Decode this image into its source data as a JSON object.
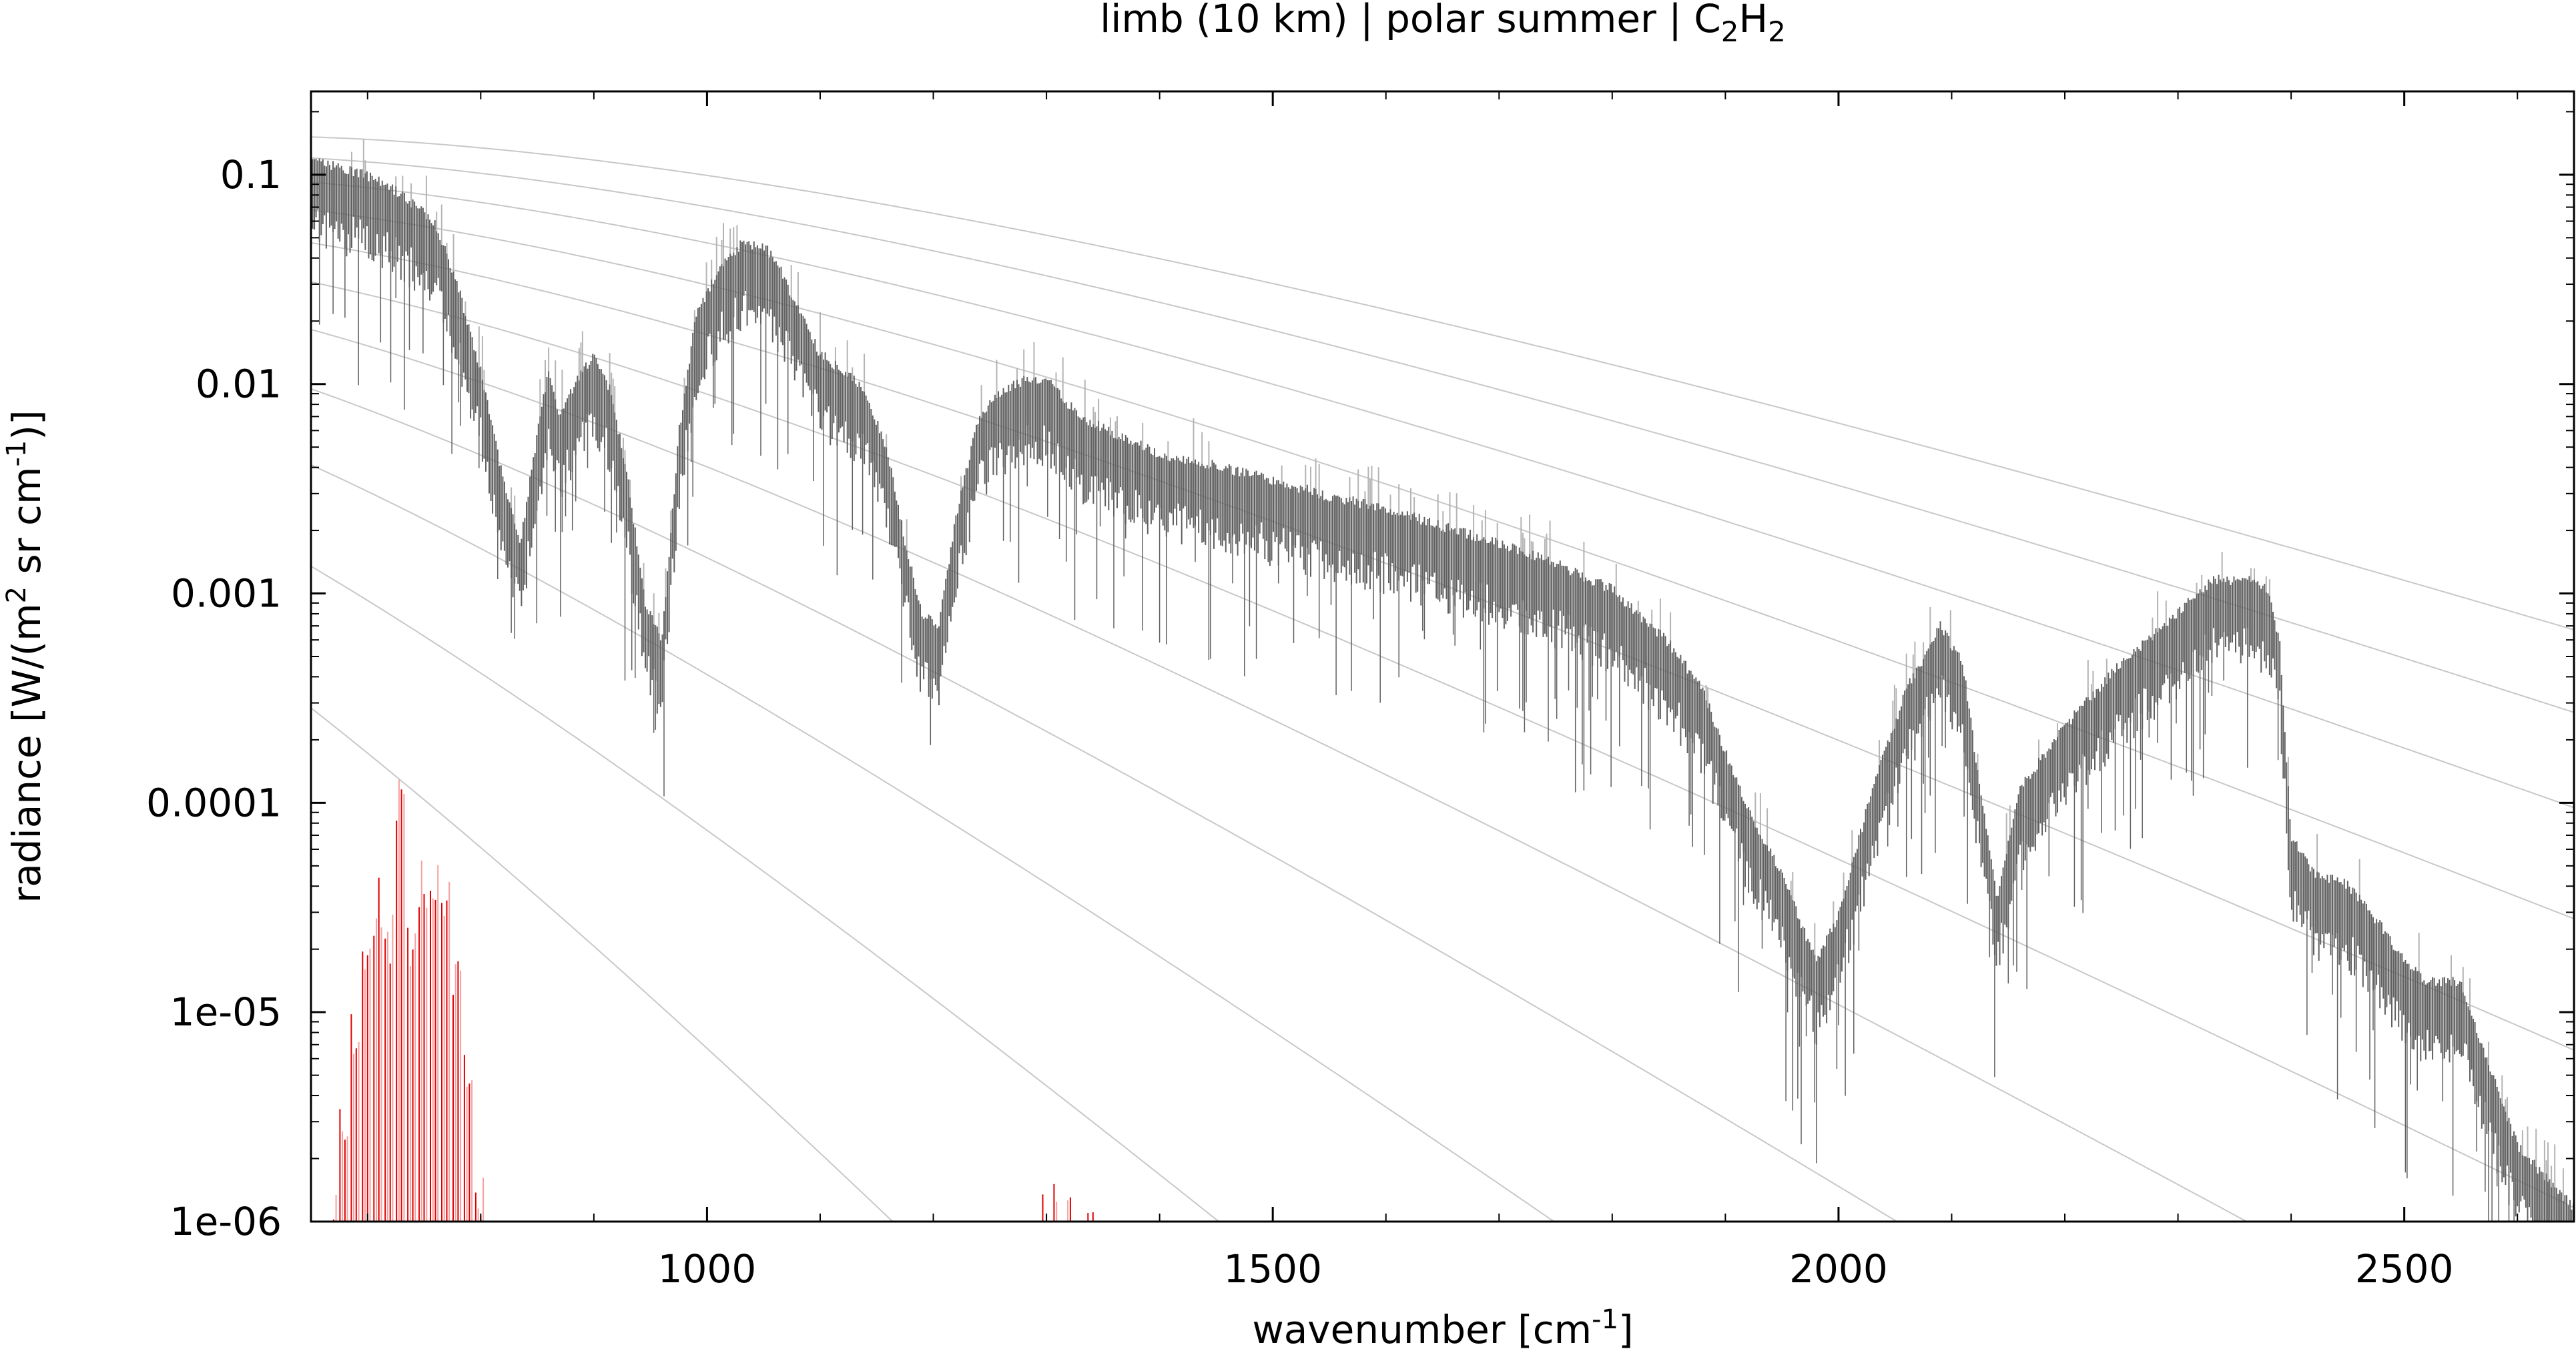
{
  "chart_data": {
    "type": "line",
    "title": {
      "prefix": "limb (10 km) | polar summer | C",
      "sub1": "2",
      "mid": "H",
      "sub2": "2"
    },
    "xlabel": {
      "prefix": "wavenumber [cm",
      "sup": "-1",
      "suffix": "]"
    },
    "ylabel": {
      "p1": "radiance [W/(m",
      "sup1": "2",
      "p2": " sr cm",
      "sup2": "-1",
      "p3": ")]"
    },
    "xlim": [
      650,
      2650
    ],
    "ylim": [
      1e-06,
      0.25
    ],
    "yscale": "log",
    "grid": false,
    "x_ticks": [
      1000,
      1500,
      2000,
      2500
    ],
    "x_tick_labels": [
      "1000",
      "1500",
      "2000",
      "2500"
    ],
    "y_ticks": [
      0.1,
      0.01,
      0.001,
      0.0001,
      1e-05,
      1e-06
    ],
    "y_tick_labels": [
      "0.1",
      "0.01",
      "0.001",
      "0.0001",
      "1e-05",
      "1e-06"
    ],
    "colors": {
      "total": "#606060",
      "total_light": "#b4b4b4",
      "species": "#e00000",
      "species_light": "#f4a0a0",
      "planck": "#c8c8c8"
    },
    "planck_temperatures_K": [
      300,
      280,
      260,
      240,
      220,
      200,
      180,
      160,
      140,
      120,
      100
    ],
    "series": [
      {
        "role": "total",
        "x": [
          650,
          670,
          700,
          730,
          760,
          780,
          800,
          820,
          835,
          850,
          860,
          870,
          885,
          900,
          915,
          930,
          945,
          960,
          975,
          990,
          1010,
          1030,
          1050,
          1065,
          1080,
          1100,
          1120,
          1140,
          1160,
          1175,
          1190,
          1205,
          1220,
          1240,
          1260,
          1280,
          1300,
          1330,
          1360,
          1400,
          1450,
          1500,
          1550,
          1600,
          1650,
          1700,
          1750,
          1800,
          1850,
          1880,
          1900,
          1920,
          1950,
          1980,
          2000,
          2030,
          2060,
          2090,
          2110,
          2125,
          2140,
          2160,
          2200,
          2250,
          2300,
          2330,
          2360,
          2380,
          2390,
          2400,
          2420,
          2450,
          2480,
          2500,
          2520,
          2550,
          2580,
          2600,
          2620,
          2650
        ],
        "y": [
          0.1,
          0.095,
          0.085,
          0.07,
          0.05,
          0.025,
          0.01,
          0.003,
          0.0015,
          0.005,
          0.01,
          0.006,
          0.009,
          0.012,
          0.008,
          0.003,
          0.0008,
          0.0005,
          0.005,
          0.018,
          0.03,
          0.04,
          0.04,
          0.03,
          0.02,
          0.012,
          0.01,
          0.008,
          0.004,
          0.0015,
          0.0007,
          0.0006,
          0.002,
          0.006,
          0.008,
          0.009,
          0.009,
          0.006,
          0.005,
          0.004,
          0.0035,
          0.003,
          0.0025,
          0.0022,
          0.0018,
          0.0015,
          0.0012,
          0.0009,
          0.0005,
          0.0003,
          0.00015,
          8e-05,
          4e-05,
          1.5e-05,
          2.5e-05,
          0.0001,
          0.0003,
          0.0006,
          0.0004,
          0.0001,
          3e-05,
          0.0001,
          0.0002,
          0.0004,
          0.0007,
          0.001,
          0.001,
          0.0009,
          0.0005,
          6e-05,
          4e-05,
          3.5e-05,
          2.2e-05,
          1.5e-05,
          1.2e-05,
          1.2e-05,
          4e-06,
          2e-06,
          1.5e-06,
          1e-06
        ]
      },
      {
        "role": "species",
        "x": [
          670,
          680,
          690,
          700,
          710,
          720,
          730,
          740,
          750,
          760,
          770,
          780,
          790,
          800,
          1300,
          1310,
          1320,
          1340,
          1350,
          1360
        ],
        "y": [
          1.5e-06,
          4e-06,
          1e-05,
          3e-05,
          4.5e-05,
          3e-05,
          0.00015,
          3e-05,
          5.5e-05,
          6e-05,
          4.5e-05,
          2e-05,
          8e-06,
          2e-06,
          1.4e-06,
          1.6e-06,
          1.5e-06,
          1.4e-06,
          1.6e-06,
          1.3e-06
        ]
      }
    ]
  }
}
